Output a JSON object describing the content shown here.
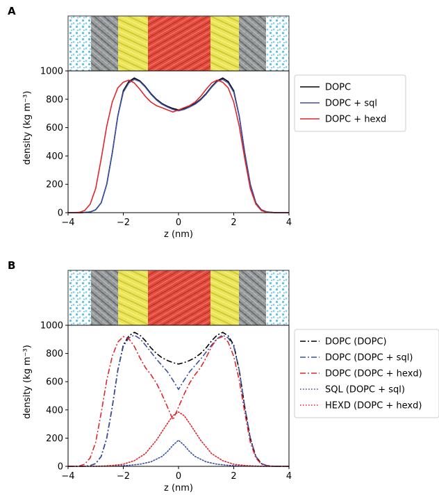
{
  "chart_data": [
    {
      "panel": "A",
      "type": "line",
      "title": "",
      "xlabel": "z (nm)",
      "ylabel": "density (kg m⁻³)",
      "xlim": [
        -4,
        4
      ],
      "ylim": [
        0,
        1000
      ],
      "xticks": [
        "−4",
        "−2",
        "0",
        "2",
        "4"
      ],
      "yticks": [
        "0",
        "200",
        "400",
        "600",
        "800",
        "1000"
      ],
      "grid": false,
      "legend_position": "outside-right-top",
      "series": [
        {
          "name": "DOPC",
          "color": "#000000",
          "dash": "solid",
          "x": [
            -4.0,
            -3.5,
            -3.2,
            -3.0,
            -2.8,
            -2.6,
            -2.4,
            -2.2,
            -2.0,
            -1.8,
            -1.6,
            -1.4,
            -1.2,
            -1.0,
            -0.8,
            -0.6,
            -0.4,
            -0.2,
            0.0,
            0.2,
            0.4,
            0.6,
            0.8,
            1.0,
            1.2,
            1.4,
            1.6,
            1.8,
            2.0,
            2.2,
            2.4,
            2.6,
            2.8,
            3.0,
            3.2,
            3.5,
            4.0
          ],
          "y": [
            0,
            0,
            5,
            20,
            70,
            200,
            420,
            680,
            860,
            925,
            950,
            930,
            890,
            840,
            800,
            770,
            750,
            735,
            725,
            735,
            750,
            770,
            800,
            840,
            890,
            930,
            950,
            925,
            860,
            680,
            420,
            200,
            70,
            20,
            5,
            0,
            0
          ]
        },
        {
          "name": "DOPC + sql",
          "color": "#3a4fa5",
          "dash": "solid",
          "x": [
            -4.0,
            -3.5,
            -3.2,
            -3.0,
            -2.8,
            -2.6,
            -2.4,
            -2.2,
            -2.0,
            -1.8,
            -1.6,
            -1.4,
            -1.2,
            -1.0,
            -0.8,
            -0.6,
            -0.4,
            -0.2,
            0.0,
            0.2,
            0.4,
            0.6,
            0.8,
            1.0,
            1.2,
            1.4,
            1.6,
            1.8,
            2.0,
            2.2,
            2.4,
            2.6,
            2.8,
            3.0,
            3.2,
            3.5,
            4.0
          ],
          "y": [
            0,
            0,
            5,
            20,
            70,
            200,
            420,
            680,
            850,
            915,
            940,
            925,
            885,
            835,
            795,
            765,
            745,
            728,
            718,
            728,
            745,
            765,
            795,
            835,
            885,
            925,
            940,
            915,
            850,
            680,
            420,
            200,
            70,
            20,
            5,
            0,
            0
          ]
        },
        {
          "name": "DOPC + hexd",
          "color": "#e0262b",
          "dash": "solid",
          "x": [
            -4.0,
            -3.6,
            -3.4,
            -3.2,
            -3.0,
            -2.8,
            -2.6,
            -2.4,
            -2.2,
            -2.0,
            -1.8,
            -1.6,
            -1.4,
            -1.2,
            -1.0,
            -0.8,
            -0.6,
            -0.4,
            -0.2,
            0.0,
            0.2,
            0.4,
            0.6,
            0.8,
            1.0,
            1.2,
            1.4,
            1.6,
            1.8,
            2.0,
            2.2,
            2.4,
            2.6,
            2.8,
            3.0,
            3.2,
            3.4,
            3.6,
            4.0
          ],
          "y": [
            0,
            2,
            15,
            60,
            170,
            380,
            610,
            780,
            880,
            920,
            935,
            915,
            870,
            820,
            780,
            755,
            740,
            725,
            710,
            725,
            740,
            755,
            780,
            820,
            870,
            915,
            935,
            920,
            880,
            780,
            610,
            380,
            170,
            60,
            15,
            2,
            0,
            0,
            0
          ]
        }
      ]
    },
    {
      "panel": "B",
      "type": "line",
      "title": "",
      "xlabel": "z (nm)",
      "ylabel": "density (kg m⁻³)",
      "xlim": [
        -4,
        4
      ],
      "ylim": [
        0,
        1000
      ],
      "xticks": [
        "−4",
        "−2",
        "0",
        "2",
        "4"
      ],
      "yticks": [
        "0",
        "200",
        "400",
        "600",
        "800",
        "1000"
      ],
      "grid": false,
      "legend_position": "outside-right-top",
      "series": [
        {
          "name": "DOPC (DOPC)",
          "color": "#000000",
          "dash": "dashdot",
          "x": [
            -4.0,
            -3.5,
            -3.2,
            -3.0,
            -2.8,
            -2.6,
            -2.4,
            -2.2,
            -2.0,
            -1.8,
            -1.6,
            -1.4,
            -1.2,
            -1.0,
            -0.8,
            -0.6,
            -0.4,
            -0.2,
            0.0,
            0.2,
            0.4,
            0.6,
            0.8,
            1.0,
            1.2,
            1.4,
            1.6,
            1.8,
            2.0,
            2.2,
            2.4,
            2.6,
            2.8,
            3.0,
            3.2,
            3.5,
            4.0
          ],
          "y": [
            0,
            0,
            5,
            20,
            70,
            200,
            420,
            680,
            860,
            925,
            950,
            930,
            890,
            840,
            800,
            770,
            750,
            735,
            725,
            735,
            750,
            770,
            800,
            840,
            890,
            930,
            950,
            925,
            860,
            680,
            420,
            200,
            70,
            20,
            5,
            0,
            0
          ]
        },
        {
          "name": "DOPC (DOPC + sql)",
          "color": "#3a4fa5",
          "dash": "dashdot",
          "x": [
            -4.0,
            -3.5,
            -3.2,
            -3.0,
            -2.8,
            -2.6,
            -2.4,
            -2.2,
            -2.0,
            -1.8,
            -1.6,
            -1.4,
            -1.2,
            -1.0,
            -0.8,
            -0.6,
            -0.4,
            -0.2,
            0.0,
            0.2,
            0.4,
            0.6,
            0.8,
            1.0,
            1.2,
            1.4,
            1.6,
            1.8,
            2.0,
            2.2,
            2.4,
            2.6,
            2.8,
            3.0,
            3.2,
            3.5,
            4.0
          ],
          "y": [
            0,
            0,
            5,
            20,
            70,
            200,
            420,
            680,
            850,
            910,
            930,
            905,
            860,
            810,
            760,
            715,
            670,
            610,
            545,
            610,
            670,
            715,
            760,
            810,
            860,
            905,
            930,
            910,
            850,
            680,
            420,
            200,
            70,
            20,
            5,
            0,
            0
          ]
        },
        {
          "name": "DOPC (DOPC + hexd)",
          "color": "#e0262b",
          "dash": "dashdot",
          "x": [
            -4.0,
            -3.6,
            -3.4,
            -3.2,
            -3.0,
            -2.8,
            -2.6,
            -2.4,
            -2.2,
            -2.0,
            -1.8,
            -1.6,
            -1.4,
            -1.2,
            -1.0,
            -0.8,
            -0.6,
            -0.4,
            -0.2,
            0.0,
            0.2,
            0.4,
            0.6,
            0.8,
            1.0,
            1.2,
            1.4,
            1.6,
            1.8,
            2.0,
            2.2,
            2.4,
            2.6,
            2.8,
            3.0,
            3.2,
            3.4,
            3.6,
            4.0
          ],
          "y": [
            0,
            2,
            15,
            60,
            170,
            380,
            610,
            780,
            880,
            920,
            905,
            850,
            770,
            700,
            650,
            590,
            510,
            420,
            330,
            420,
            510,
            590,
            650,
            700,
            770,
            850,
            905,
            920,
            880,
            780,
            610,
            380,
            170,
            60,
            15,
            2,
            0,
            0,
            0
          ]
        },
        {
          "name": "SQL (DOPC + sql)",
          "color": "#3a4fa5",
          "dash": "dotted",
          "x": [
            -4.0,
            -3.0,
            -2.6,
            -2.2,
            -1.8,
            -1.4,
            -1.0,
            -0.6,
            -0.4,
            -0.2,
            0.0,
            0.2,
            0.4,
            0.6,
            1.0,
            1.4,
            1.8,
            2.2,
            2.6,
            3.0,
            4.0
          ],
          "y": [
            0,
            0,
            1,
            3,
            7,
            15,
            32,
            70,
            105,
            150,
            185,
            150,
            105,
            70,
            32,
            15,
            7,
            3,
            1,
            0,
            0
          ]
        },
        {
          "name": "HEXD (DOPC + hexd)",
          "color": "#e0262b",
          "dash": "dotted",
          "x": [
            -4.0,
            -3.2,
            -2.8,
            -2.4,
            -2.0,
            -1.6,
            -1.2,
            -0.8,
            -0.6,
            -0.4,
            -0.2,
            0.0,
            0.2,
            0.4,
            0.6,
            0.8,
            1.2,
            1.6,
            2.0,
            2.4,
            2.8,
            3.2,
            4.0
          ],
          "y": [
            0,
            0,
            2,
            6,
            15,
            40,
            90,
            185,
            245,
            305,
            360,
            385,
            360,
            305,
            245,
            185,
            90,
            40,
            15,
            6,
            2,
            0,
            0
          ]
        }
      ]
    }
  ]
}
